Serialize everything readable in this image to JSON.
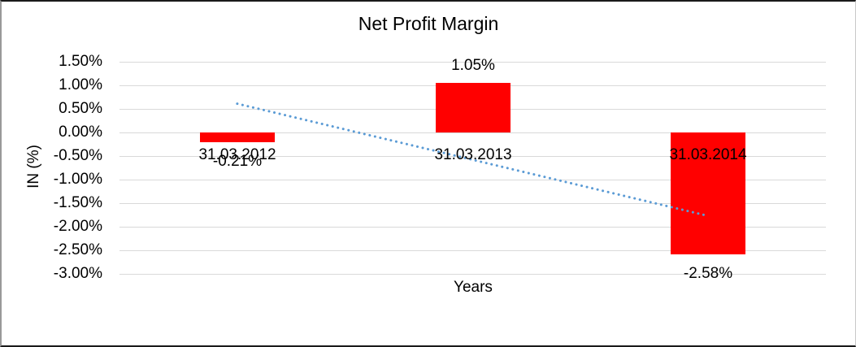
{
  "chart_data": {
    "type": "bar",
    "title": "Net Profit Margin",
    "xlabel": "Years",
    "ylabel": "IN (%)",
    "categories": [
      "31.03.2012",
      "31.03.2013",
      "31.03.2014"
    ],
    "values": [
      -0.21,
      1.05,
      -2.58
    ],
    "data_labels": [
      "-0.21%",
      "1.05%",
      "-2.58%"
    ],
    "bar_color": "#FF0000",
    "ylim": [
      -3.0,
      1.5
    ],
    "ytick_step": 0.5,
    "ytick_labels": [
      "1.50%",
      "1.00%",
      "0.50%",
      "0.00%",
      "-0.50%",
      "-1.00%",
      "-1.50%",
      "-2.00%",
      "-2.50%",
      "-3.00%"
    ],
    "grid": true,
    "gridline_color": "#D9D9D9",
    "legend": "none",
    "background": "#FFFFFF",
    "trendline": {
      "type": "linear",
      "style": "dotted",
      "color": "#5B9BD5",
      "start_value": 0.61,
      "end_value": -1.77,
      "spans": "first-category-center-to-last-category-center"
    }
  }
}
